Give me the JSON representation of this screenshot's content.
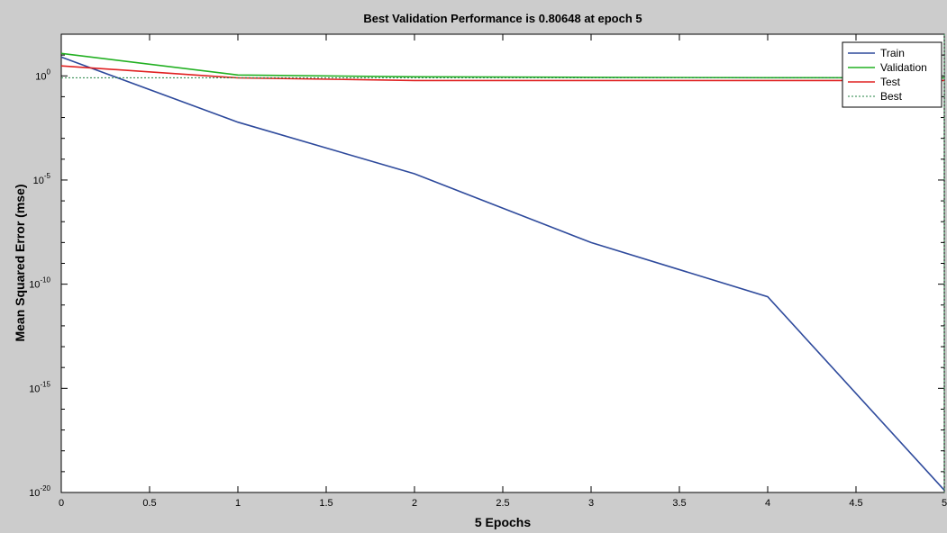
{
  "chart_data": {
    "type": "line",
    "title": "Best Validation Performance is 0.80648 at epoch 5",
    "xlabel": "5 Epochs",
    "ylabel": "Mean Squared Error  (mse)",
    "xlim": [
      0,
      5
    ],
    "ylim": [
      1e-20,
      100
    ],
    "yscale": "log",
    "xticks": [
      "0",
      "0.5",
      "1",
      "1.5",
      "2",
      "2.5",
      "3",
      "3.5",
      "4",
      "4.5",
      "5"
    ],
    "yticks": [
      {
        "base": "10",
        "exp": "0"
      },
      {
        "base": "10",
        "exp": "-5"
      },
      {
        "base": "10",
        "exp": "-10"
      },
      {
        "base": "10",
        "exp": "-15"
      },
      {
        "base": "10",
        "exp": "-20"
      }
    ],
    "x": [
      0,
      1,
      2,
      3,
      4,
      5
    ],
    "series": [
      {
        "name": "Train",
        "color": "#2e4a9c",
        "style": "solid",
        "values": [
          8,
          0.006,
          2e-05,
          1e-08,
          2.5e-11,
          1.3e-20
        ]
      },
      {
        "name": "Validation",
        "color": "#22b022",
        "style": "solid",
        "values": [
          12,
          1.1,
          0.9,
          0.85,
          0.82,
          0.80648
        ]
      },
      {
        "name": "Test",
        "color": "#e02222",
        "style": "solid",
        "values": [
          3,
          0.8,
          0.6,
          0.6,
          0.6,
          0.6
        ]
      },
      {
        "name": "Best",
        "color": "#208040",
        "style": "dotted",
        "values": [
          0.80648,
          0.80648,
          0.80648,
          0.80648,
          0.80648,
          0.80648
        ]
      }
    ],
    "best_epoch": 5,
    "legend_position": "top-right",
    "grid": false
  }
}
